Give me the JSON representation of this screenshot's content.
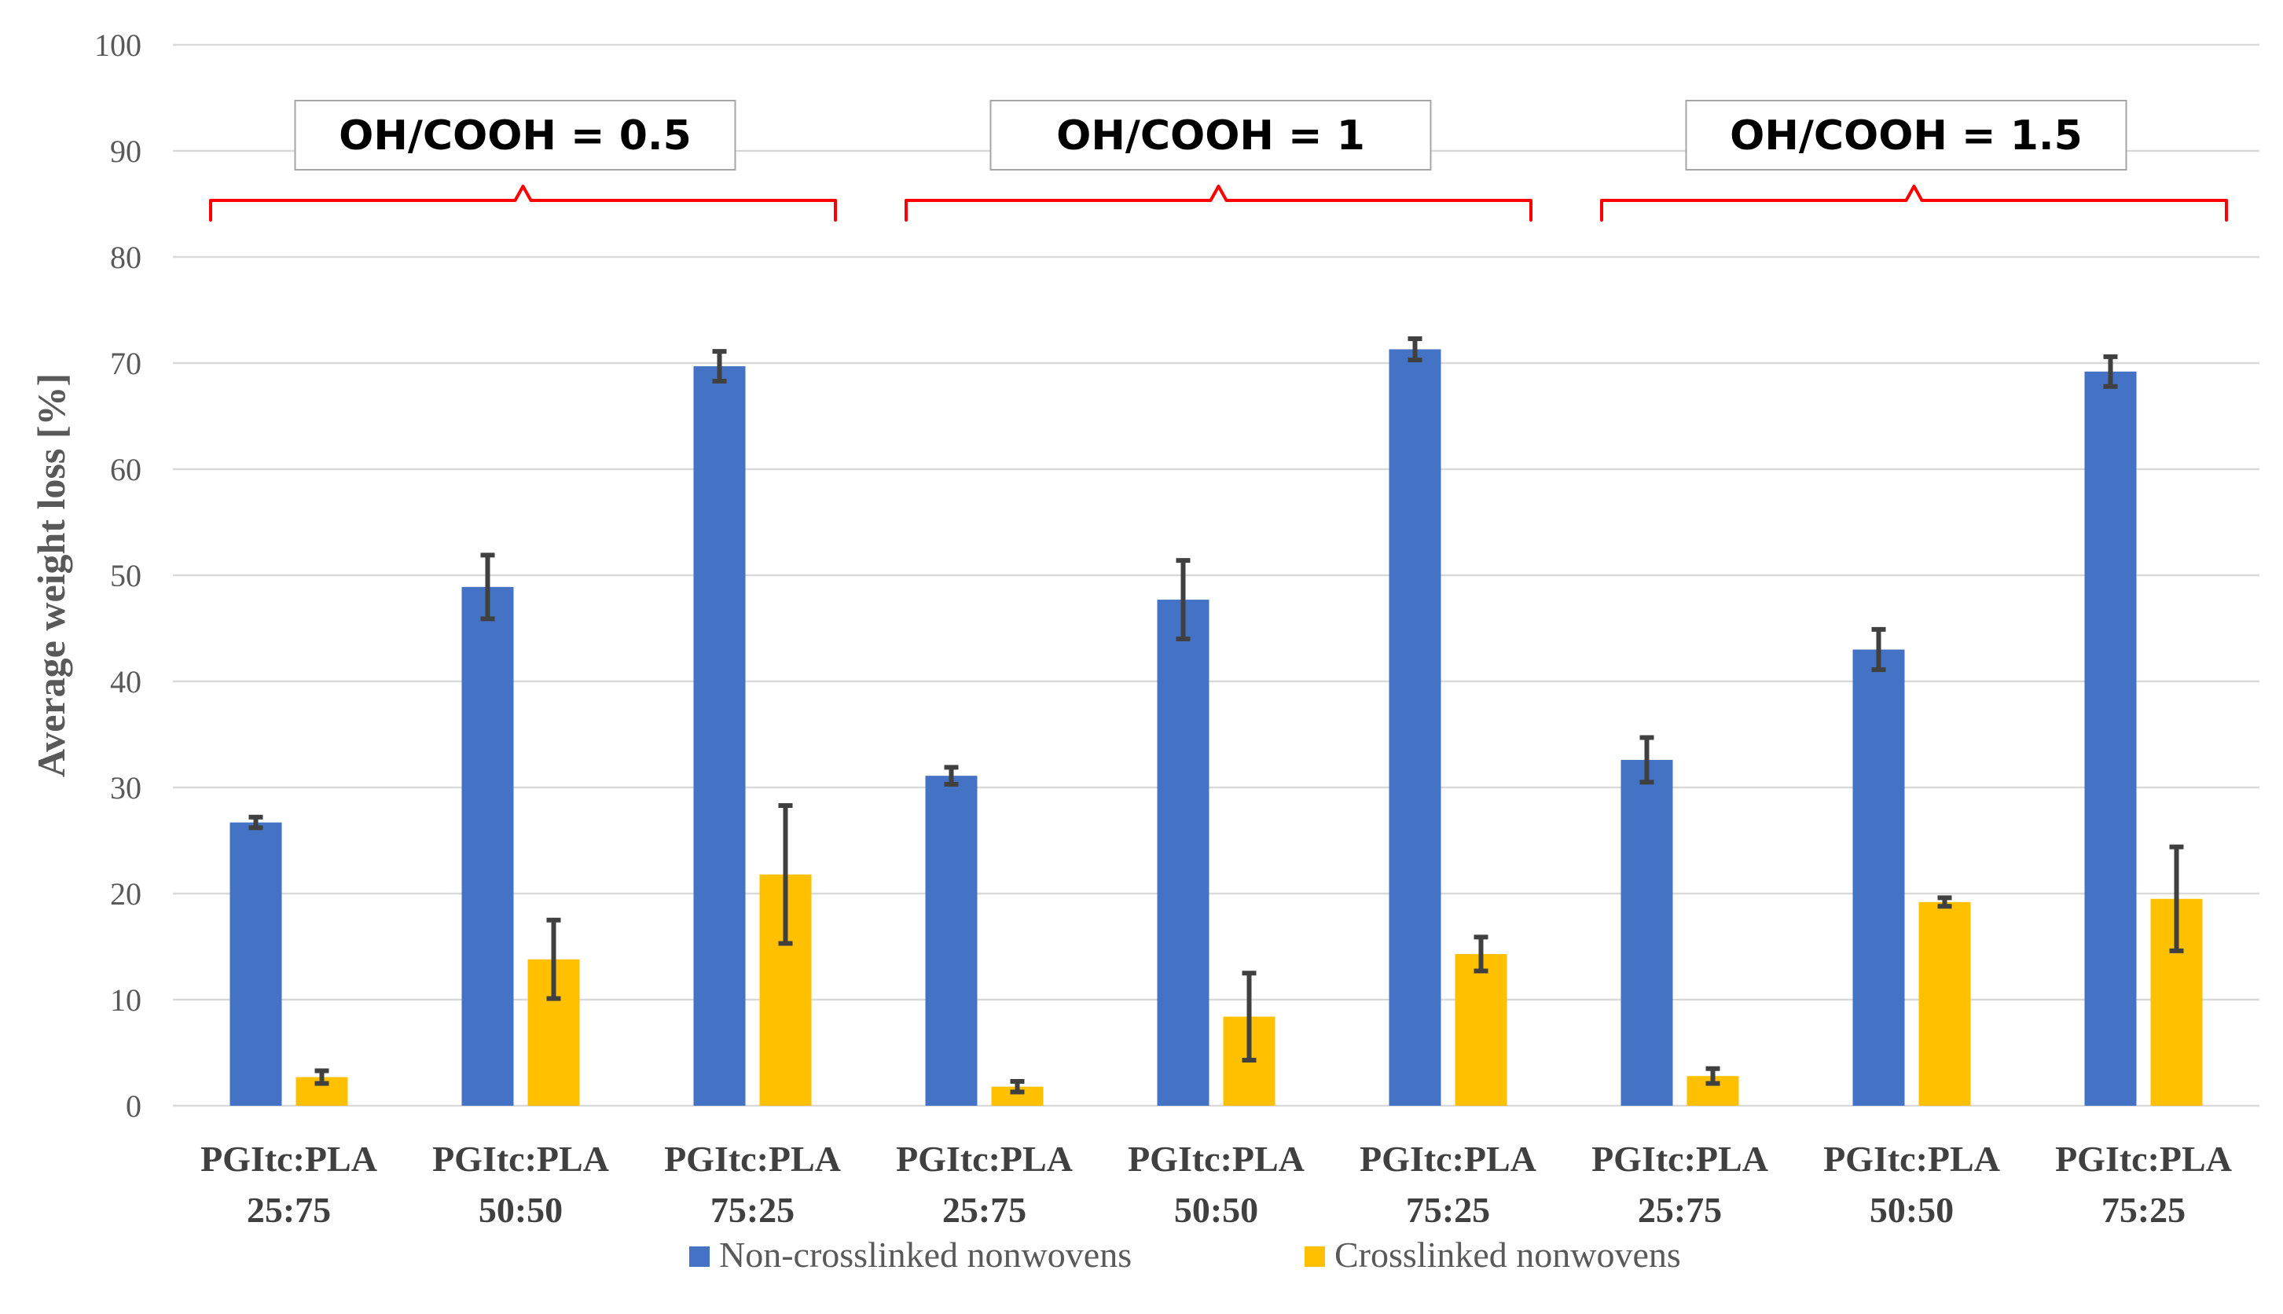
{
  "chart_data": {
    "type": "bar",
    "title": "",
    "xlabel": "",
    "ylabel": "Average weight loss [%]",
    "ylim": [
      0,
      100
    ],
    "yticks": [
      0,
      10,
      20,
      30,
      40,
      50,
      60,
      70,
      80,
      90,
      100
    ],
    "grid": true,
    "legend_position": "bottom",
    "categories": [
      [
        "PGItc:PLA",
        "25:75"
      ],
      [
        "PGItc:PLA",
        "50:50"
      ],
      [
        "PGItc:PLA",
        "75:25"
      ],
      [
        "PGItc:PLA",
        "25:75"
      ],
      [
        "PGItc:PLA",
        "50:50"
      ],
      [
        "PGItc:PLA",
        "75:25"
      ],
      [
        "PGItc:PLA",
        "25:75"
      ],
      [
        "PGItc:PLA",
        "50:50"
      ],
      [
        "PGItc:PLA",
        "75:25"
      ]
    ],
    "series": [
      {
        "name": "Non-crosslinked nonwovens",
        "color": "#4472C4",
        "values": [
          26.7,
          48.9,
          69.7,
          31.1,
          47.7,
          71.3,
          32.6,
          43.0,
          69.2
        ],
        "errors": [
          0.5,
          3.0,
          1.4,
          0.8,
          3.7,
          1.0,
          2.1,
          1.9,
          1.4
        ]
      },
      {
        "name": "Crosslinked nonwovens",
        "color": "#FFC000",
        "values": [
          2.7,
          13.8,
          21.8,
          1.8,
          8.4,
          14.3,
          2.8,
          19.2,
          19.5
        ],
        "errors": [
          0.6,
          3.7,
          6.5,
          0.5,
          4.1,
          1.6,
          0.7,
          0.4,
          4.9
        ]
      }
    ],
    "groups": [
      {
        "label": "OH/COOH = 0.5",
        "categories": [
          0,
          1,
          2
        ]
      },
      {
        "label": "OH/COOH = 1",
        "categories": [
          3,
          4,
          5
        ]
      },
      {
        "label": "OH/COOH = 1.5",
        "categories": [
          6,
          7,
          8
        ]
      }
    ],
    "bracket_color": "#FF0000",
    "error_bar_color": "#404040",
    "grid_color": "#D9D9D9"
  }
}
